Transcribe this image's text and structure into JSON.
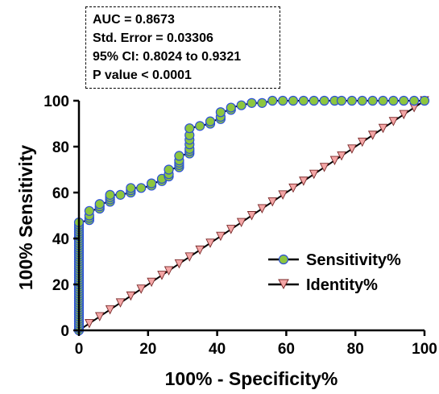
{
  "stats": {
    "auc": "AUC = 0.8673",
    "std_error": "Std. Error = 0.03306",
    "ci": "95% CI: 0.8024 to 0.9321",
    "p_value": "P value < 0.0001"
  },
  "colors": {
    "sensitivity_fill": "#8dc63f",
    "sensitivity_stroke": "#2b4fd8",
    "identity_fill": "#f4a6a6",
    "identity_stroke": "#7a2a2a",
    "axis": "#000000"
  },
  "chart_data": {
    "type": "line",
    "title": "",
    "xlabel": "100% - Specificity%",
    "ylabel": "100% Sensitivity",
    "xlim": [
      0,
      100
    ],
    "ylim": [
      0,
      100
    ],
    "xticks": [
      0,
      20,
      40,
      60,
      80,
      100
    ],
    "yticks": [
      0,
      20,
      40,
      60,
      80,
      100
    ],
    "grid": false,
    "legend_position": "bottom-right",
    "series": [
      {
        "name": "Sensitivity%",
        "marker": "circle",
        "x": [
          0,
          0,
          0,
          0,
          0,
          0,
          0,
          0,
          0,
          0,
          0,
          0,
          0,
          0,
          0,
          0,
          0,
          0,
          0,
          0,
          0,
          0,
          0,
          0,
          0,
          0,
          0,
          0,
          0,
          0,
          0,
          0,
          0,
          0,
          0,
          0,
          0,
          0,
          0,
          0,
          0,
          0,
          0,
          0,
          0,
          0,
          0,
          0,
          3,
          3,
          3,
          3,
          6,
          6,
          6,
          9,
          9,
          9,
          9,
          12,
          15,
          15,
          15,
          18,
          21,
          21,
          24,
          24,
          26,
          26,
          26,
          29,
          29,
          29,
          29,
          29,
          32,
          32,
          32,
          32,
          32,
          32,
          32,
          35,
          38,
          38,
          41,
          41,
          41,
          44,
          44,
          47,
          50,
          53,
          56,
          59,
          62,
          65,
          68,
          71,
          74,
          76,
          79,
          82,
          85,
          88,
          91,
          94,
          97,
          100
        ],
        "y": [
          0,
          1,
          2,
          3,
          4,
          5,
          6,
          7,
          8,
          9,
          10,
          11,
          12,
          13,
          14,
          15,
          16,
          17,
          18,
          19,
          20,
          21,
          22,
          23,
          24,
          25,
          26,
          27,
          28,
          29,
          30,
          31,
          32,
          33,
          34,
          35,
          36,
          37,
          38,
          39,
          40,
          41,
          42,
          43,
          44,
          45,
          46,
          47,
          48,
          49,
          50,
          52,
          53,
          54,
          55,
          56,
          57,
          58,
          59,
          59,
          60,
          61,
          62,
          62,
          63,
          64,
          65,
          66,
          67,
          68,
          70,
          71,
          72,
          73,
          74,
          76,
          77,
          78,
          79,
          81,
          83,
          85,
          88,
          89,
          90,
          91,
          92,
          93,
          95,
          96,
          97,
          98,
          99,
          99,
          100,
          100,
          100,
          100,
          100,
          100,
          100,
          100,
          100,
          100,
          100,
          100,
          100,
          100,
          100,
          100
        ]
      },
      {
        "name": "Identity%",
        "marker": "triangle-down",
        "x": [
          0,
          3,
          6,
          9,
          12,
          15,
          18,
          21,
          24,
          26,
          29,
          32,
          35,
          38,
          41,
          44,
          47,
          50,
          53,
          56,
          59,
          62,
          65,
          68,
          71,
          74,
          76,
          79,
          82,
          85,
          88,
          91,
          94,
          97,
          100
        ],
        "y": [
          0,
          3,
          6,
          9,
          12,
          15,
          18,
          21,
          24,
          26,
          29,
          32,
          35,
          38,
          41,
          44,
          47,
          50,
          53,
          56,
          59,
          62,
          65,
          68,
          71,
          74,
          76,
          79,
          82,
          85,
          88,
          91,
          94,
          97,
          100
        ]
      }
    ]
  }
}
